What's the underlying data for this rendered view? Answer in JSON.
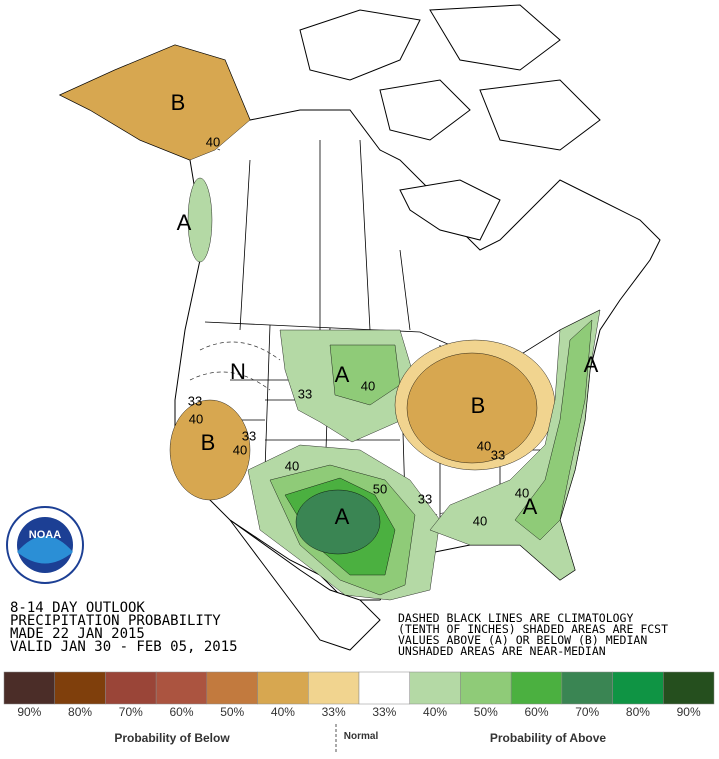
{
  "map": {
    "labels": [
      "B",
      "40",
      "A",
      "N",
      "A",
      "40",
      "33",
      "33",
      "40",
      "B",
      "33",
      "40",
      "B",
      "40",
      "33",
      "40",
      "50",
      "A",
      "33",
      "40",
      "A",
      "A",
      "40"
    ],
    "logo": "NOAA",
    "title_lines": [
      "8-14 DAY OUTLOOK",
      "PRECIPITATION PROBABILITY",
      "MADE  22 JAN 2015",
      "VALID  JAN 30 - FEB 05, 2015"
    ],
    "notes": [
      "DASHED BLACK LINES ARE CLIMATOLOGY",
      "(TENTH OF INCHES) SHADED AREAS ARE FCST",
      "VALUES ABOVE (A) OR BELOW (B) MEDIAN",
      "UNSHADED AREAS ARE NEAR-MEDIAN"
    ]
  },
  "legend": {
    "items": [
      {
        "label": "90%",
        "color": "#4b2d28"
      },
      {
        "label": "80%",
        "color": "#7f3f0c"
      },
      {
        "label": "70%",
        "color": "#9a4538"
      },
      {
        "label": "60%",
        "color": "#ab5440"
      },
      {
        "label": "50%",
        "color": "#c27a3e"
      },
      {
        "label": "40%",
        "color": "#d7a750"
      },
      {
        "label": "33%",
        "color": "#f1d48f"
      },
      {
        "label": "33%",
        "color": "#ffffff"
      },
      {
        "label": "40%",
        "color": "#b4d9a5"
      },
      {
        "label": "50%",
        "color": "#8fcb78"
      },
      {
        "label": "60%",
        "color": "#4bb040"
      },
      {
        "label": "70%",
        "color": "#3a8553"
      },
      {
        "label": "80%",
        "color": "#0f9444"
      },
      {
        "label": "90%",
        "color": "#254f1e"
      }
    ],
    "below": "Probability of Below",
    "normal": "Normal",
    "above": "Probability of Above"
  }
}
